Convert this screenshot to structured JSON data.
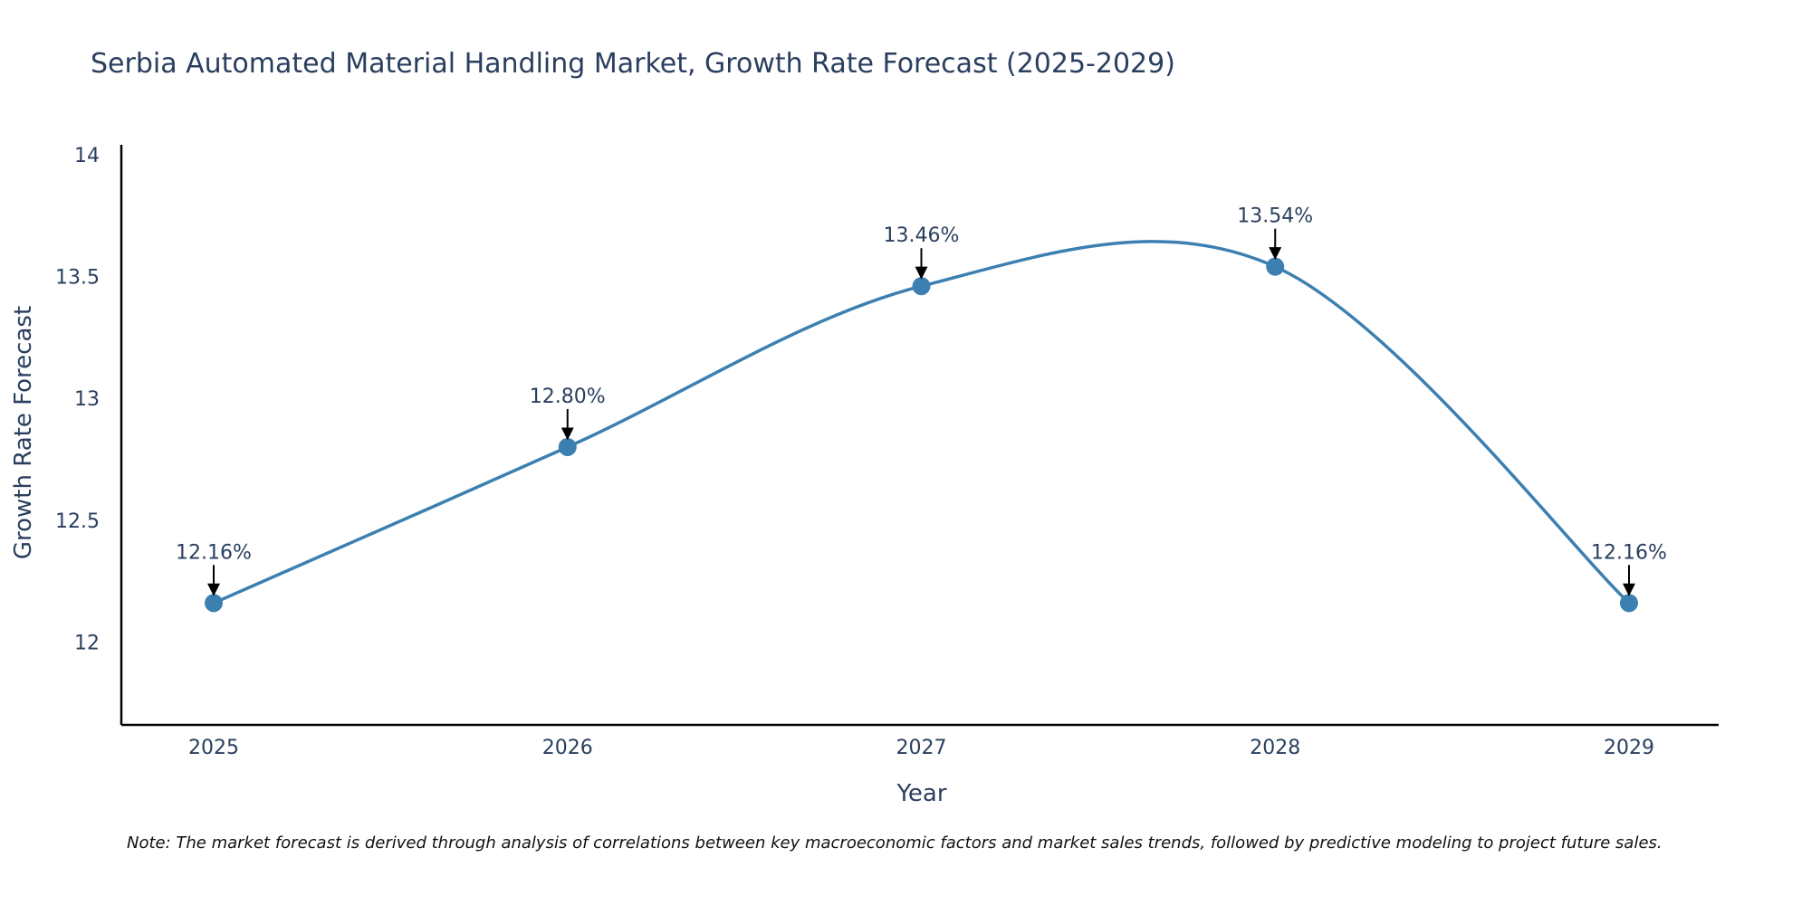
{
  "chart_data": {
    "type": "line",
    "title": "Serbia Automated Material Handling Market, Growth Rate Forecast (2025-2029)",
    "xlabel": "Year",
    "ylabel": "Growth Rate Forecast",
    "categories": [
      "2025",
      "2026",
      "2027",
      "2028",
      "2029"
    ],
    "values": [
      12.16,
      12.8,
      13.46,
      13.54,
      12.16
    ],
    "data_labels": [
      "12.16%",
      "12.80%",
      "13.46%",
      "13.54%",
      "12.16%"
    ],
    "y_ticks": [
      "12",
      "12.5",
      "13",
      "13.5",
      "14"
    ],
    "y_tick_values": [
      12,
      12.5,
      13,
      13.5,
      14
    ],
    "ylim": [
      11.66,
      14.04
    ],
    "line_shape": "spline",
    "grid": false,
    "colors": {
      "line": "#3c7fb1",
      "marker": "#3c7fb1",
      "arrow": "#000000",
      "axis": "#000000",
      "text": "#2a3f5f"
    }
  },
  "note": "Note: The market forecast is derived through analysis of correlations between key macroeconomic factors and market sales trends, followed by predictive modeling to project future sales."
}
